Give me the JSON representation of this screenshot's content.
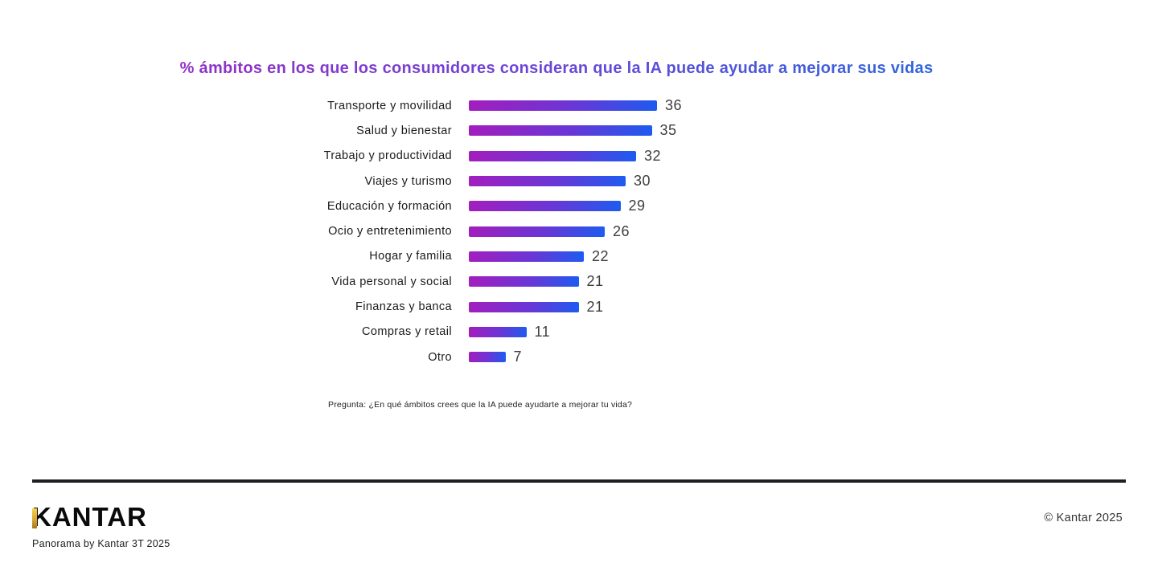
{
  "title": "% ámbitos en los que los consumidores consideran que la IA puede ayudar a mejorar sus vidas",
  "note": "Pregunta: ¿En qué ámbitos crees que la IA puede ayudarte a mejorar tu vida?",
  "footer": {
    "logo": "KANTAR",
    "subtext": "Panorama by Kantar 3T 2025",
    "copyright": "© Kantar 2025"
  },
  "colors": {
    "title_gradient_start": "#9a2bc4",
    "title_gradient_end": "#1e6fe0",
    "bar_gradient_start": "#a21ebd",
    "bar_gradient_mid": "#6a36d6",
    "bar_gradient_end": "#1e5bf0",
    "logo_gold_top": "#f6d14f",
    "logo_gold_bottom": "#a8761c",
    "divider": "#1f1f23"
  },
  "chart_data": {
    "type": "bar",
    "orientation": "horizontal",
    "title": "% ámbitos en los que los consumidores consideran que la IA puede ayudar a mejorar sus vidas",
    "categories": [
      "Transporte y movilidad",
      "Salud y bienestar",
      "Trabajo y productividad",
      "Viajes y turismo",
      "Educación y formación",
      "Ocio y entretenimiento",
      "Hogar y familia",
      "Vida personal y social",
      "Finanzas y banca",
      "Compras y retail",
      "Otro"
    ],
    "values": [
      36,
      35,
      32,
      30,
      29,
      26,
      22,
      21,
      21,
      11,
      7
    ],
    "xlabel": "",
    "ylabel": "",
    "xlim": [
      0,
      40
    ],
    "grid": false,
    "legend": false,
    "value_labels": true,
    "annotation": "Pregunta: ¿En qué ámbitos crees que la IA puede ayudarte a mejorar tu vida?"
  }
}
